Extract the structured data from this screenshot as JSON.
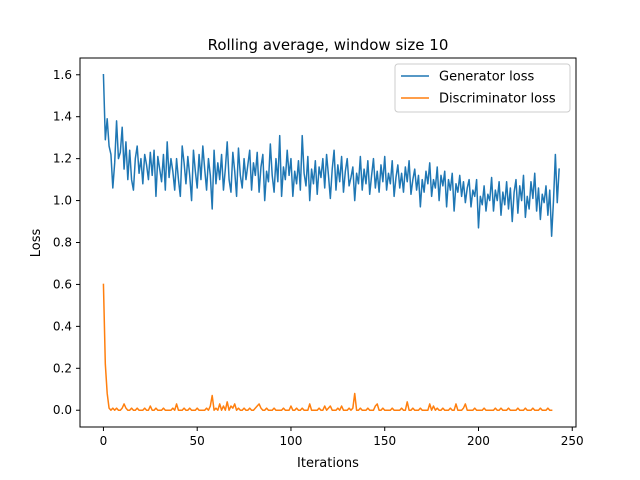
{
  "chart_data": {
    "type": "line",
    "title": "Rolling average, window size 10",
    "xlabel": "Iterations",
    "ylabel": "Loss",
    "xlim": [
      -12.5,
      252
    ],
    "ylim": [
      -0.08,
      1.68
    ],
    "xticks": [
      0,
      50,
      100,
      150,
      200,
      250
    ],
    "yticks": [
      0.0,
      0.2,
      0.4,
      0.6,
      0.8,
      1.0,
      1.2,
      1.4,
      1.6
    ],
    "grid": false,
    "legend_position": "top-right",
    "series": [
      {
        "name": "Generator loss",
        "color": "#1f77b4",
        "x_start": 0,
        "x_step": 1,
        "values": [
          1.6,
          1.29,
          1.39,
          1.26,
          1.22,
          1.06,
          1.18,
          1.38,
          1.2,
          1.23,
          1.35,
          1.15,
          1.28,
          1.1,
          1.24,
          1.1,
          1.05,
          1.2,
          1.26,
          1.13,
          1.2,
          1.08,
          1.22,
          1.17,
          1.1,
          1.23,
          1.12,
          1.24,
          1.02,
          1.21,
          1.15,
          1.09,
          1.22,
          1.05,
          1.28,
          1.11,
          1.2,
          1.14,
          1.05,
          1.2,
          1.1,
          1.02,
          1.26,
          1.18,
          1.08,
          1.21,
          1.12,
          1.0,
          1.24,
          1.14,
          1.06,
          1.22,
          1.1,
          1.26,
          1.15,
          1.05,
          1.2,
          1.12,
          0.96,
          1.24,
          1.08,
          1.18,
          1.1,
          1.22,
          1.05,
          1.15,
          1.28,
          1.1,
          1.04,
          1.23,
          1.14,
          1.02,
          1.25,
          1.12,
          1.06,
          1.2,
          1.1,
          1.17,
          1.24,
          1.05,
          1.18,
          1.12,
          1.23,
          1.04,
          1.16,
          1.22,
          1.0,
          1.14,
          1.09,
          1.27,
          1.12,
          1.04,
          1.2,
          1.09,
          1.31,
          1.02,
          1.16,
          1.1,
          1.24,
          1.12,
          1.2,
          1.02,
          1.14,
          1.08,
          1.19,
          1.05,
          1.31,
          1.13,
          1.07,
          1.21,
          1.0,
          1.15,
          1.08,
          1.19,
          1.03,
          1.16,
          1.11,
          1.2,
          1.06,
          1.22,
          1.12,
          1.01,
          1.15,
          1.24,
          1.05,
          1.17,
          1.09,
          1.21,
          1.04,
          1.14,
          1.2,
          1.07,
          1.11,
          1.16,
          1.0,
          1.13,
          1.08,
          1.21,
          1.05,
          1.15,
          1.08,
          1.19,
          1.03,
          1.12,
          1.2,
          1.06,
          1.14,
          1.04,
          1.17,
          1.09,
          1.21,
          1.05,
          1.13,
          1.08,
          1.19,
          1.02,
          1.11,
          1.17,
          1.06,
          1.13,
          1.04,
          1.16,
          1.09,
          1.19,
          1.03,
          1.1,
          1.15,
          1.05,
          1.12,
          0.97,
          1.1,
          1.04,
          1.14,
          1.08,
          1.18,
          1.02,
          1.1,
          1.06,
          1.16,
          1.0,
          1.12,
          1.07,
          1.14,
          0.97,
          1.1,
          1.05,
          1.13,
          0.95,
          1.08,
          1.04,
          1.12,
          1.02,
          1.09,
          0.99,
          1.06,
          1.1,
          0.97,
          1.05,
          1.02,
          1.1,
          0.87,
          1.02,
          0.98,
          1.07,
          0.95,
          1.03,
          1.0,
          1.11,
          0.95,
          1.05,
          1.0,
          1.09,
          0.93,
          1.04,
          0.98,
          1.09,
          0.96,
          1.06,
          0.9,
          1.04,
          1.1,
          0.94,
          1.07,
          1.0,
          1.12,
          0.92,
          1.02,
          0.96,
          1.09,
          1.01,
          1.13,
          0.95,
          1.06,
          0.91,
          1.03,
          0.99,
          1.07,
          0.93,
          1.05,
          0.83,
          1.0,
          1.22,
          0.99,
          1.15
        ]
      },
      {
        "name": "Discriminator loss",
        "color": "#ff7f0e",
        "x_start": 0,
        "x_step": 1,
        "values": [
          0.6,
          0.22,
          0.08,
          0.01,
          0.0,
          0.01,
          0.0,
          0.01,
          0.0,
          0.0,
          0.01,
          0.03,
          0.01,
          0.0,
          0.0,
          0.01,
          0.0,
          0.0,
          0.01,
          0.0,
          0.0,
          0.0,
          0.01,
          0.0,
          0.0,
          0.02,
          0.0,
          0.0,
          0.01,
          0.0,
          0.0,
          0.0,
          0.01,
          0.0,
          0.0,
          0.0,
          0.0,
          0.01,
          0.0,
          0.03,
          0.0,
          0.0,
          0.0,
          0.01,
          0.0,
          0.0,
          0.01,
          0.0,
          0.0,
          0.0,
          0.01,
          0.0,
          0.0,
          0.0,
          0.0,
          0.01,
          0.0,
          0.02,
          0.07,
          0.0,
          0.01,
          0.0,
          0.03,
          0.0,
          0.02,
          0.0,
          0.04,
          0.0,
          0.02,
          0.01,
          0.03,
          0.0,
          0.01,
          0.0,
          0.0,
          0.01,
          0.0,
          0.0,
          0.01,
          0.0,
          0.0,
          0.01,
          0.02,
          0.03,
          0.01,
          0.0,
          0.0,
          0.01,
          0.0,
          0.0,
          0.0,
          0.01,
          0.0,
          0.0,
          0.0,
          0.0,
          0.01,
          0.0,
          0.0,
          0.0,
          0.02,
          0.0,
          0.0,
          0.01,
          0.0,
          0.0,
          0.01,
          0.0,
          0.0,
          0.0,
          0.03,
          0.0,
          0.0,
          0.0,
          0.0,
          0.01,
          0.0,
          0.0,
          0.02,
          0.0,
          0.01,
          0.02,
          0.0,
          0.0,
          0.0,
          0.01,
          0.0,
          0.02,
          0.0,
          0.0,
          0.0,
          0.01,
          0.0,
          0.01,
          0.08,
          0.0,
          0.0,
          0.01,
          0.0,
          0.0,
          0.0,
          0.01,
          0.0,
          0.0,
          0.0,
          0.02,
          0.03,
          0.0,
          0.0,
          0.01,
          0.0,
          0.0,
          0.0,
          0.0,
          0.01,
          0.0,
          0.0,
          0.0,
          0.0,
          0.01,
          0.0,
          0.0,
          0.04,
          0.0,
          0.0,
          0.01,
          0.0,
          0.0,
          0.0,
          0.01,
          0.0,
          0.0,
          0.0,
          0.0,
          0.03,
          0.0,
          0.02,
          0.0,
          0.01,
          0.0,
          0.0,
          0.01,
          0.0,
          0.0,
          0.0,
          0.01,
          0.0,
          0.0,
          0.03,
          0.0,
          0.0,
          0.0,
          0.01,
          0.03,
          0.0,
          0.0,
          0.0,
          0.0,
          0.01,
          0.0,
          0.0,
          0.0,
          0.0,
          0.01,
          0.0,
          0.0,
          0.0,
          0.0,
          0.0,
          0.01,
          0.0,
          0.0,
          0.01,
          0.0,
          0.0,
          0.0,
          0.01,
          0.0,
          0.0,
          0.0,
          0.0,
          0.01,
          0.0,
          0.0,
          0.0,
          0.01,
          0.0,
          0.0,
          0.0,
          0.01,
          0.0,
          0.0,
          0.0,
          0.01,
          0.0,
          0.0,
          0.0,
          0.01,
          0.0,
          0.0
        ]
      }
    ]
  }
}
